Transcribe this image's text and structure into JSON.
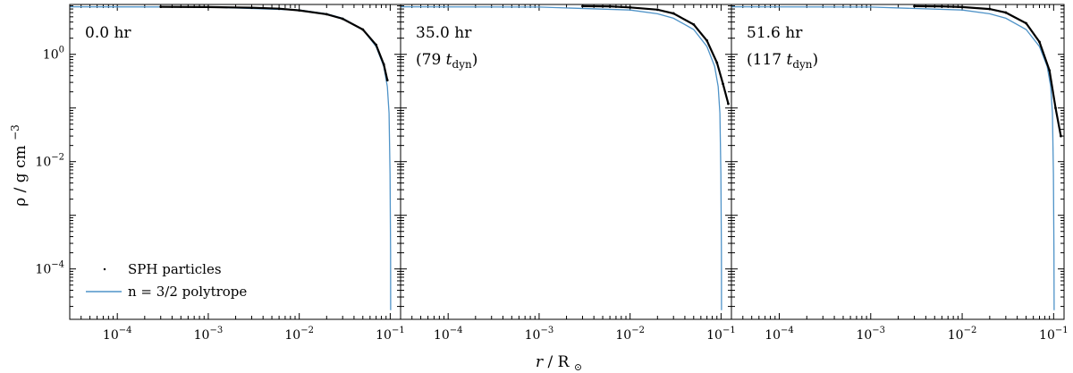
{
  "figure": {
    "xlabel_main": "r",
    "xlabel_unit": "R",
    "ylabel": "ρ / g cm",
    "ylabel_exp": "−3",
    "legend": {
      "particles": "SPH particles",
      "polytrope": "n = 3/2 polytrope"
    },
    "colors": {
      "particles": "#000000",
      "polytrope": "#4f93c8"
    }
  },
  "chart_data": [
    {
      "type": "line",
      "xscale": "log",
      "yscale": "log",
      "xlim": [
        3e-05,
        0.13
      ],
      "ylim": [
        1.15e-05,
        8.5
      ],
      "x_ticks": [
        {
          "base": "10",
          "exp": "−4"
        },
        {
          "base": "10",
          "exp": "−3"
        },
        {
          "base": "10",
          "exp": "−2"
        },
        {
          "base": "10",
          "exp": "−1"
        }
      ],
      "y_ticks": [
        {
          "base": "10",
          "exp": "0"
        },
        {
          "base": "10",
          "exp": "−2"
        },
        {
          "base": "10",
          "exp": "−4"
        }
      ],
      "time": "0.0 hr",
      "time_dyn": "",
      "series": [
        {
          "name": "SPH particles",
          "x": [
            0.0003,
            0.001,
            0.003,
            0.006,
            0.01,
            0.02,
            0.03,
            0.05,
            0.07,
            0.085,
            0.093
          ],
          "y": [
            7.7,
            7.6,
            7.4,
            7.1,
            6.6,
            5.6,
            4.6,
            2.9,
            1.5,
            0.65,
            0.33
          ]
        },
        {
          "name": "n = 3/2 polytrope",
          "x": [
            3e-05,
            0.001,
            0.01,
            0.02,
            0.03,
            0.05,
            0.07,
            0.085,
            0.093,
            0.097,
            0.0995,
            0.1008,
            0.1012
          ],
          "y": [
            7.7,
            7.6,
            6.7,
            5.7,
            4.7,
            2.9,
            1.4,
            0.6,
            0.25,
            0.08,
            0.006,
            0.0002,
            1.7e-05
          ]
        }
      ]
    },
    {
      "type": "line",
      "xscale": "log",
      "yscale": "log",
      "xlim": [
        3e-05,
        0.13
      ],
      "ylim": [
        1.15e-05,
        8.5
      ],
      "x_ticks": [
        {
          "base": "10",
          "exp": "−4"
        },
        {
          "base": "10",
          "exp": "−3"
        },
        {
          "base": "10",
          "exp": "−2"
        },
        {
          "base": "10",
          "exp": "−1"
        }
      ],
      "y_ticks": [],
      "time": "35.0 hr",
      "time_dyn": {
        "open": "(79 ",
        "t": "t",
        "sub": "dyn",
        "close": ")"
      },
      "series": [
        {
          "name": "SPH particles",
          "x": [
            0.003,
            0.006,
            0.01,
            0.02,
            0.03,
            0.05,
            0.07,
            0.09,
            0.105,
            0.12
          ],
          "y": [
            7.9,
            7.8,
            7.5,
            6.8,
            5.8,
            3.6,
            1.8,
            0.7,
            0.28,
            0.12
          ]
        },
        {
          "name": "n = 3/2 polytrope",
          "x": [
            3e-05,
            0.001,
            0.01,
            0.02,
            0.03,
            0.05,
            0.07,
            0.085,
            0.093,
            0.097,
            0.0995,
            0.1008,
            0.1012
          ],
          "y": [
            7.7,
            7.6,
            6.7,
            5.7,
            4.7,
            2.9,
            1.4,
            0.6,
            0.25,
            0.08,
            0.006,
            0.0002,
            1.7e-05
          ]
        }
      ]
    },
    {
      "type": "line",
      "xscale": "log",
      "yscale": "log",
      "xlim": [
        3e-05,
        0.13
      ],
      "ylim": [
        1.15e-05,
        8.5
      ],
      "x_ticks": [
        {
          "base": "10",
          "exp": "−4"
        },
        {
          "base": "10",
          "exp": "−3"
        },
        {
          "base": "10",
          "exp": "−2"
        },
        {
          "base": "10",
          "exp": "−1"
        }
      ],
      "y_ticks": [],
      "time": "51.6 hr",
      "time_dyn": {
        "open": "(117 ",
        "t": "t",
        "sub": "dyn",
        "close": ")"
      },
      "series": [
        {
          "name": "SPH particles",
          "x": [
            0.003,
            0.006,
            0.01,
            0.02,
            0.03,
            0.05,
            0.07,
            0.09,
            0.105,
            0.12
          ],
          "y": [
            7.9,
            7.8,
            7.6,
            7.0,
            6.0,
            3.8,
            1.7,
            0.5,
            0.1,
            0.03
          ]
        },
        {
          "name": "n = 3/2 polytrope",
          "x": [
            3e-05,
            0.001,
            0.01,
            0.02,
            0.03,
            0.05,
            0.07,
            0.085,
            0.093,
            0.097,
            0.0995,
            0.1008,
            0.1012
          ],
          "y": [
            7.7,
            7.6,
            6.7,
            5.7,
            4.7,
            2.9,
            1.4,
            0.6,
            0.25,
            0.08,
            0.006,
            0.0002,
            1.7e-05
          ]
        }
      ]
    }
  ]
}
